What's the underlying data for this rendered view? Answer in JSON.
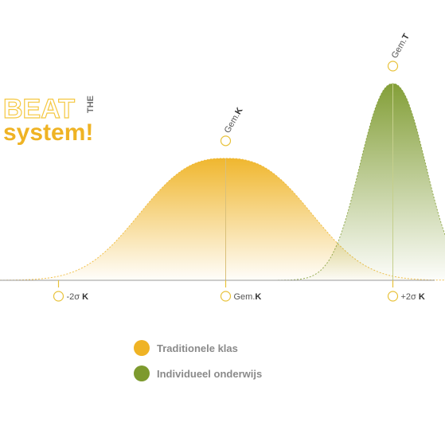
{
  "logo": {
    "line1": "BEAT",
    "line_small": "THE",
    "line2": "system!"
  },
  "chart_data": {
    "type": "area",
    "xlim": [
      -2.7,
      2.5
    ],
    "ylim": [
      0,
      1
    ],
    "x_markers": [
      {
        "x": -2,
        "label_plain": "-2σ ",
        "label_bold": "K",
        "side": "after"
      },
      {
        "x": 0,
        "label_plain": "Gem.",
        "label_bold": "K",
        "side": "after"
      },
      {
        "x": 2,
        "label_plain": "+2σ ",
        "label_bold": "K",
        "side": "after"
      }
    ],
    "series": [
      {
        "name": "Traditionele klas",
        "color": "#efb324",
        "mean": 0,
        "sd": 1,
        "peak": 0.62,
        "peak_label_plain": "Gem.",
        "peak_label_bold": "K"
      },
      {
        "name": "Individueel onderwijs",
        "color": "#7d9a2e",
        "mean": 2,
        "sd": 0.42,
        "peak": 1.0,
        "peak_label_plain": "Gem.",
        "peak_label_bold": "T"
      }
    ]
  },
  "legend": [
    {
      "label": "Traditionele klas",
      "color": "#efb324"
    },
    {
      "label": "Individueel onderwijs",
      "color": "#7d9a2e"
    }
  ]
}
